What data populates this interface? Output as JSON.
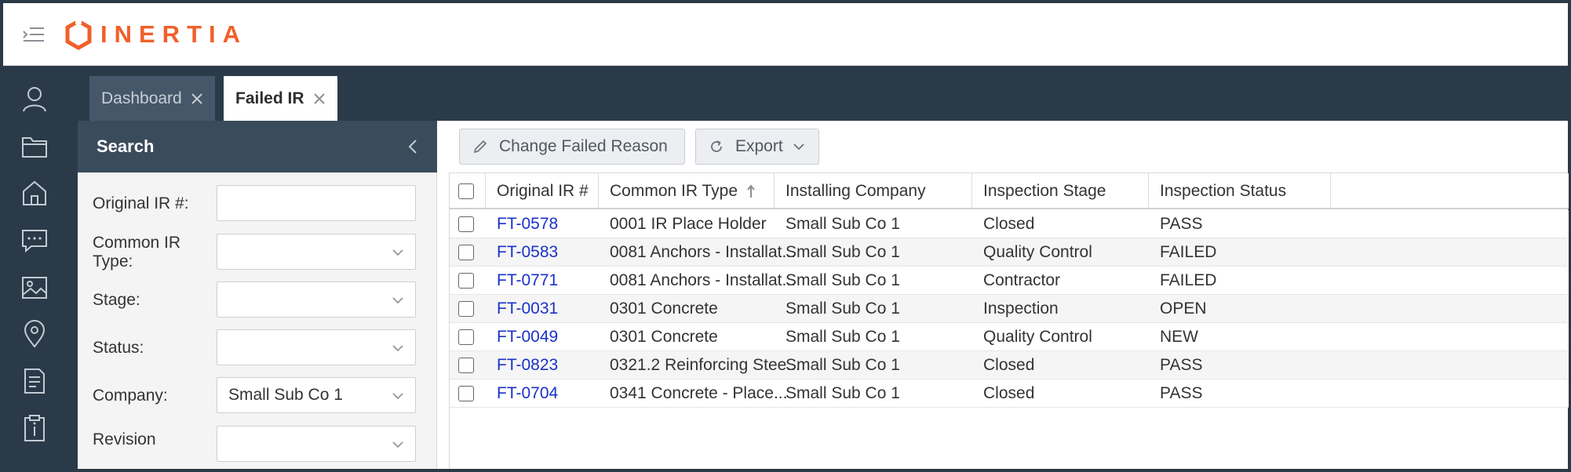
{
  "app": {
    "logo_text": "INERTIA",
    "brand_color": "#f0602a"
  },
  "rail": {
    "items": [
      "user-icon",
      "folder-icon",
      "home-icon",
      "chat-icon",
      "image-icon",
      "location-pin-icon",
      "checklist-icon",
      "clipboard-info-icon"
    ]
  },
  "tabs": [
    {
      "label": "Dashboard",
      "active": false
    },
    {
      "label": "Failed IR",
      "active": true
    }
  ],
  "search": {
    "title": "Search",
    "fields": [
      {
        "label": "Original IR #:",
        "value": ""
      },
      {
        "label": "Common IR Type:",
        "value": ""
      },
      {
        "label": "Stage:",
        "value": ""
      },
      {
        "label": "Status:",
        "value": ""
      },
      {
        "label": "Company:",
        "value": "Small Sub Co 1"
      },
      {
        "label": "Revision",
        "value": ""
      }
    ]
  },
  "toolbar": {
    "change_failed_reason": "Change Failed Reason",
    "export": "Export"
  },
  "grid": {
    "columns": [
      "Original IR #",
      "Common IR Type",
      "Installing Company",
      "Inspection Stage",
      "Inspection Status"
    ],
    "sorted_column": "Common IR Type",
    "rows": [
      {
        "ir": "FT-0578",
        "type": "0001 IR Place Holder",
        "company": "Small Sub Co 1",
        "stage": "Closed",
        "status": "PASS"
      },
      {
        "ir": "FT-0583",
        "type": "0081 Anchors - Installat...",
        "company": "Small Sub Co 1",
        "stage": "Quality Control",
        "status": "FAILED"
      },
      {
        "ir": "FT-0771",
        "type": "0081 Anchors - Installat...",
        "company": "Small Sub Co 1",
        "stage": "Contractor",
        "status": "FAILED"
      },
      {
        "ir": "FT-0031",
        "type": "0301 Concrete",
        "company": "Small Sub Co 1",
        "stage": "Inspection",
        "status": "OPEN"
      },
      {
        "ir": "FT-0049",
        "type": "0301 Concrete",
        "company": "Small Sub Co 1",
        "stage": "Quality Control",
        "status": "NEW"
      },
      {
        "ir": "FT-0823",
        "type": "0321.2 Reinforcing Stee...",
        "company": "Small Sub Co 1",
        "stage": "Closed",
        "status": "PASS"
      },
      {
        "ir": "FT-0704",
        "type": "0341 Concrete - Place...",
        "company": "Small Sub Co 1",
        "stage": "Closed",
        "status": "PASS"
      }
    ]
  }
}
